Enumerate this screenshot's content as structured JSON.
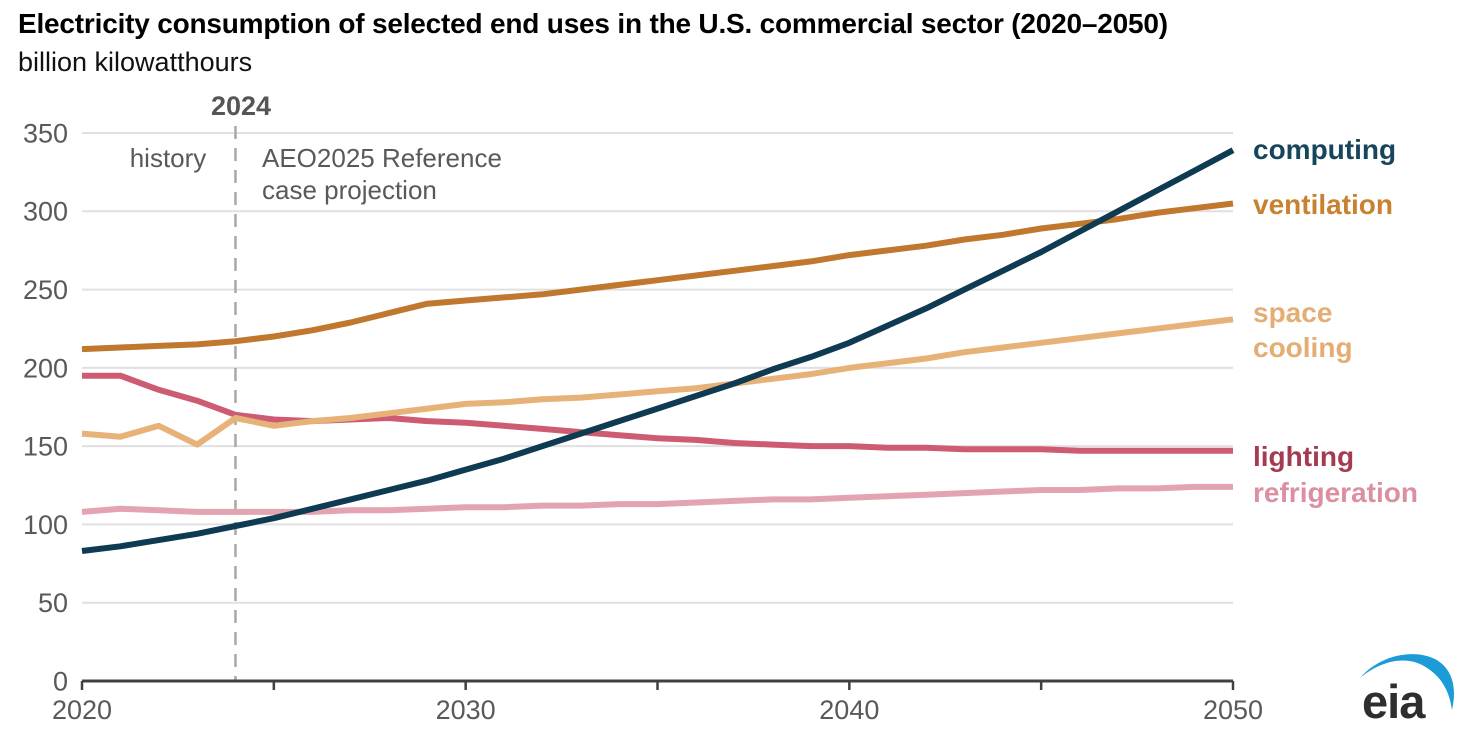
{
  "chart_data": {
    "type": "line",
    "title": "Electricity consumption of selected end uses in the U.S. commercial sector (2020–2050)",
    "subtitle": "billion kilowatthours",
    "xlabel": "",
    "ylabel": "billion kilowatthours",
    "xlim": [
      2020,
      2050
    ],
    "ylim": [
      0,
      350
    ],
    "y_ticks": [
      0,
      50,
      100,
      150,
      200,
      250,
      300,
      350
    ],
    "x_axis_ticks": [
      2020,
      2025,
      2030,
      2035,
      2040,
      2045,
      2050
    ],
    "x_axis_labels": [
      "2020",
      "2030",
      "2040",
      "2050"
    ],
    "grid": "horizontal",
    "legend_position": "right",
    "axis_color": "#404040",
    "grid_color": "#e0e0e0",
    "tick_label_color": "#595959",
    "projection_start_year": 2024,
    "annotations": {
      "divider_year": "2024",
      "history": "history",
      "projection_line1": "AEO2025 Reference",
      "projection_line2": "case projection",
      "text_color": "#595959",
      "divider_color": "#a8a8a8"
    },
    "x": [
      2020,
      2021,
      2022,
      2023,
      2024,
      2025,
      2026,
      2027,
      2028,
      2029,
      2030,
      2031,
      2032,
      2033,
      2034,
      2035,
      2036,
      2037,
      2038,
      2039,
      2040,
      2041,
      2042,
      2043,
      2044,
      2045,
      2046,
      2047,
      2048,
      2049,
      2050
    ],
    "series": [
      {
        "name": "ventilation",
        "label": "ventilation",
        "color": "#c0772e",
        "label_color": "#c8812f",
        "values": [
          212,
          213,
          214,
          215,
          217,
          220,
          224,
          229,
          235,
          241,
          243,
          245,
          247,
          250,
          253,
          256,
          259,
          262,
          265,
          268,
          272,
          275,
          278,
          282,
          285,
          289,
          292,
          295,
          299,
          302,
          305
        ]
      },
      {
        "name": "lighting",
        "label": "lighting",
        "color": "#cd5c73",
        "label_color": "#a53b51",
        "values": [
          195,
          195,
          186,
          179,
          170,
          167,
          166,
          167,
          168,
          166,
          165,
          163,
          161,
          159,
          157,
          155,
          154,
          152,
          151,
          150,
          150,
          149,
          149,
          148,
          148,
          148,
          147,
          147,
          147,
          147,
          147
        ]
      },
      {
        "name": "refrigeration",
        "label": "refrigeration",
        "color": "#e3a3b0",
        "label_color": "#dc8fa1",
        "values": [
          108,
          110,
          109,
          108,
          108,
          108,
          108,
          109,
          109,
          110,
          111,
          111,
          112,
          112,
          113,
          113,
          114,
          115,
          116,
          116,
          117,
          118,
          119,
          120,
          121,
          122,
          122,
          123,
          123,
          124,
          124
        ]
      },
      {
        "name": "space cooling",
        "label": "space cooling",
        "color": "#e7b277",
        "label_color": "#e3ad74",
        "values": [
          158,
          156,
          163,
          151,
          168,
          163,
          166,
          168,
          171,
          174,
          177,
          178,
          180,
          181,
          183,
          185,
          187,
          190,
          193,
          196,
          200,
          203,
          206,
          210,
          213,
          216,
          219,
          222,
          225,
          228,
          231
        ]
      },
      {
        "name": "computing",
        "label": "computing",
        "color": "#0e3a52",
        "label_color": "#17455c",
        "values": [
          83,
          86,
          90,
          94,
          99,
          104,
          110,
          116,
          122,
          128,
          135,
          142,
          150,
          158,
          166,
          174,
          182,
          190,
          199,
          207,
          216,
          227,
          238,
          250,
          262,
          274,
          287,
          300,
          313,
          326,
          339
        ]
      }
    ]
  },
  "logo": {
    "text": "eia",
    "text_color": "#2e2e2e",
    "swoosh_color": "#1d9bd7"
  }
}
